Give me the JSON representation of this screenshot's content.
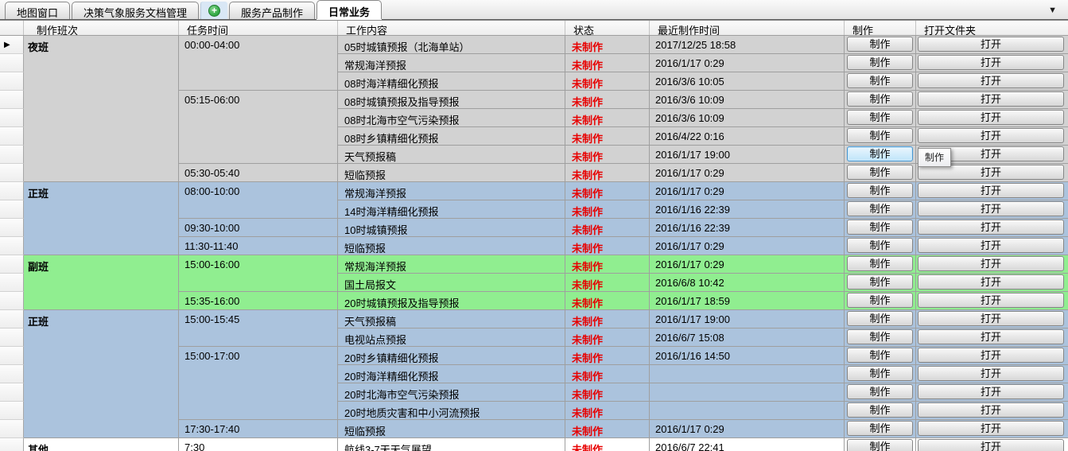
{
  "tabs": {
    "items": [
      {
        "label": "地图窗口",
        "active": false
      },
      {
        "label": "决策气象服务文档管理",
        "active": false
      },
      {
        "label": "服务产品制作",
        "active": false
      },
      {
        "label": "日常业务",
        "active": true
      }
    ],
    "add_icon": "+",
    "dropdown_icon": "▼"
  },
  "table": {
    "columns": [
      "制作班次",
      "任务时间",
      "工作内容",
      "状态",
      "最近制作时间",
      "制作",
      "打开文件夹"
    ],
    "status_label": "未制作",
    "make_button_label": "制作",
    "open_button_label": "打开",
    "tooltip_text": "制作",
    "row_marker_icon": "▶",
    "colors": {
      "night_grey": "#d2d2d2",
      "regular_blue": "#abc3dd",
      "deputy_green": "#90ee90",
      "other_white": "#ffffff",
      "status_red": "#e80000"
    },
    "sections": [
      {
        "shift": "夜班",
        "bg": "#d2d2d2",
        "groups": [
          {
            "time": "00:00-04:00",
            "tasks": [
              {
                "content": "05时城镇预报（北海单站）",
                "last_time": "2017/12/25 18:58"
              },
              {
                "content": "常规海洋预报",
                "last_time": "2016/1/17 0:29"
              },
              {
                "content": "08时海洋精细化预报",
                "last_time": "2016/3/6 10:05"
              }
            ]
          },
          {
            "time": "05:15-06:00",
            "tasks": [
              {
                "content": "08时城镇预报及指导预报",
                "last_time": "2016/3/6 10:09"
              },
              {
                "content": "08时北海市空气污染预报",
                "last_time": "2016/3/6 10:09"
              },
              {
                "content": "08时乡镇精细化预报",
                "last_time": "2016/4/22 0:16"
              },
              {
                "content": "天气预报稿",
                "last_time": "2016/1/17 19:00",
                "hovered": true
              }
            ]
          },
          {
            "time": "05:30-05:40",
            "tasks": [
              {
                "content": "短临预报",
                "last_time": "2016/1/17 0:29"
              }
            ]
          }
        ]
      },
      {
        "shift": "正班",
        "bg": "#abc3dd",
        "groups": [
          {
            "time": "08:00-10:00",
            "tasks": [
              {
                "content": "常规海洋预报",
                "last_time": "2016/1/17 0:29"
              },
              {
                "content": "14时海洋精细化预报",
                "last_time": "2016/1/16 22:39"
              }
            ]
          },
          {
            "time": "09:30-10:00",
            "tasks": [
              {
                "content": "10时城镇预报",
                "last_time": "2016/1/16 22:39"
              }
            ]
          },
          {
            "time": "11:30-11:40",
            "tasks": [
              {
                "content": "短临预报",
                "last_time": "2016/1/17 0:29"
              }
            ]
          }
        ]
      },
      {
        "shift": "副班",
        "bg": "#90ee90",
        "groups": [
          {
            "time": "15:00-16:00",
            "tasks": [
              {
                "content": "常规海洋预报",
                "last_time": "2016/1/17 0:29"
              },
              {
                "content": "国土局报文",
                "last_time": "2016/6/8 10:42"
              }
            ]
          },
          {
            "time": "15:35-16:00",
            "tasks": [
              {
                "content": "20时城镇预报及指导预报",
                "last_time": "2016/1/17 18:59"
              }
            ]
          }
        ]
      },
      {
        "shift": "正班",
        "bg": "#abc3dd",
        "groups": [
          {
            "time": "15:00-15:45",
            "tasks": [
              {
                "content": "天气预报稿",
                "last_time": "2016/1/17 19:00"
              },
              {
                "content": "电视站点预报",
                "last_time": "2016/6/7 15:08"
              }
            ]
          },
          {
            "time": "15:00-17:00",
            "tasks": [
              {
                "content": "20时乡镇精细化预报",
                "last_time": "2016/1/16 14:50"
              },
              {
                "content": "20时海洋精细化预报",
                "last_time": ""
              },
              {
                "content": "20时北海市空气污染预报",
                "last_time": ""
              },
              {
                "content": "20时地质灾害和中小河流预报",
                "last_time": ""
              }
            ]
          },
          {
            "time": "17:30-17:40",
            "tasks": [
              {
                "content": "短临预报",
                "last_time": "2016/1/17 0:29"
              }
            ]
          }
        ]
      },
      {
        "shift": "其他",
        "bg": "#ffffff",
        "groups": [
          {
            "time": "7:30",
            "tasks": [
              {
                "content": "航线3-7天天气展望",
                "last_time": "2016/6/7 22:41"
              }
            ]
          }
        ]
      }
    ]
  }
}
